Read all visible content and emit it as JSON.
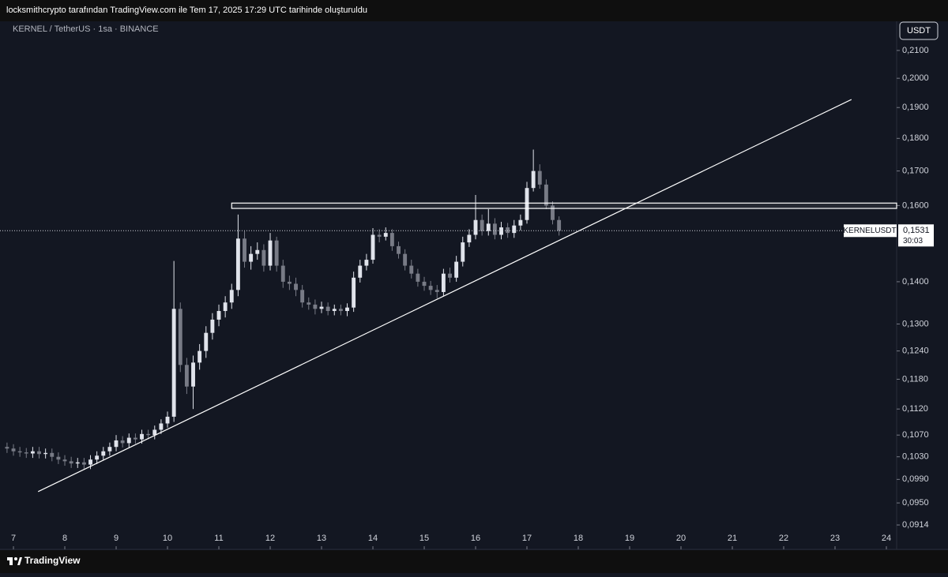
{
  "caption": "locksmithcrypto tarafından TradingView.com ile Tem 17, 2025 17:29 UTC tarihinde oluşturuldu",
  "brand": "TradingView",
  "chart_data": {
    "type": "candlestick",
    "title": "KERNEL / TetherUS · 1sa · BINANCE",
    "currency": "USDT",
    "log_scale": true,
    "up_color": "#e0e3eb",
    "down_color": "#787b86",
    "xlim": [
      6.738,
      24.2
    ],
    "ylim": [
      0.0883,
      0.2207
    ],
    "xticks": [
      7,
      8,
      9,
      10,
      11,
      12,
      13,
      14,
      15,
      16,
      17,
      18,
      19,
      20,
      21,
      22,
      23,
      24
    ],
    "yticks": [
      {
        "value": 0.0914,
        "label": "0,0914"
      },
      {
        "value": 0.095,
        "label": "0,0950"
      },
      {
        "value": 0.099,
        "label": "0,0990"
      },
      {
        "value": 0.103,
        "label": "0,1030"
      },
      {
        "value": 0.107,
        "label": "0,1070"
      },
      {
        "value": 0.112,
        "label": "0,1120"
      },
      {
        "value": 0.118,
        "label": "0,1180"
      },
      {
        "value": 0.124,
        "label": "0,1240"
      },
      {
        "value": 0.13,
        "label": "0,1300"
      },
      {
        "value": 0.14,
        "label": "0,1400"
      },
      {
        "value": 0.16,
        "label": "0,1600"
      },
      {
        "value": 0.17,
        "label": "0,1700"
      },
      {
        "value": 0.18,
        "label": "0,1800"
      },
      {
        "value": 0.19,
        "label": "0,1900"
      },
      {
        "value": 0.2,
        "label": "0,2000"
      },
      {
        "value": 0.21,
        "label": "0,2100"
      }
    ],
    "x": [
      6.875,
      7,
      7.125,
      7.25,
      7.375,
      7.5,
      7.625,
      7.75,
      7.875,
      8,
      8.125,
      8.25,
      8.375,
      8.5,
      8.625,
      8.75,
      8.875,
      9,
      9.125,
      9.25,
      9.375,
      9.5,
      9.625,
      9.75,
      9.875,
      10,
      10.125,
      10.25,
      10.375,
      10.5,
      10.625,
      10.75,
      10.875,
      11,
      11.125,
      11.25,
      11.375,
      11.5,
      11.625,
      11.75,
      11.875,
      12,
      12.125,
      12.25,
      12.375,
      12.5,
      12.625,
      12.75,
      12.875,
      13,
      13.125,
      13.25,
      13.375,
      13.5,
      13.625,
      13.75,
      13.875,
      14,
      14.125,
      14.25,
      14.375,
      14.5,
      14.625,
      14.75,
      14.875,
      15,
      15.125,
      15.25,
      15.375,
      15.5,
      15.625,
      15.75,
      15.875,
      16,
      16.125,
      16.25,
      16.375,
      16.5,
      16.625,
      16.75,
      16.875,
      17,
      17.125,
      17.25,
      17.375,
      17.5,
      17.625
    ],
    "open": [
      0.1048,
      0.1045,
      0.104,
      0.1038,
      0.1036,
      0.104,
      0.1035,
      0.1037,
      0.103,
      0.1025,
      0.1022,
      0.1018,
      0.102,
      0.1016,
      0.1025,
      0.1032,
      0.104,
      0.1048,
      0.106,
      0.1055,
      0.1065,
      0.1062,
      0.1072,
      0.107,
      0.108,
      0.1092,
      0.1105,
      0.1335,
      0.121,
      0.1165,
      0.1215,
      0.124,
      0.128,
      0.131,
      0.133,
      0.135,
      0.138,
      0.151,
      0.145,
      0.147,
      0.148,
      0.144,
      0.1505,
      0.144,
      0.14,
      0.1395,
      0.138,
      0.135,
      0.1345,
      0.1335,
      0.134,
      0.133,
      0.1335,
      0.133,
      0.1338,
      0.141,
      0.144,
      0.1455,
      0.152,
      0.1515,
      0.1525,
      0.149,
      0.147,
      0.144,
      0.142,
      0.14,
      0.139,
      0.138,
      0.1375,
      0.142,
      0.141,
      0.145,
      0.15,
      0.152,
      0.156,
      0.153,
      0.155,
      0.152,
      0.154,
      0.1525,
      0.1545,
      0.156,
      0.165,
      0.17,
      0.166,
      0.16,
      0.156
    ],
    "high": [
      0.1056,
      0.1053,
      0.1048,
      0.1046,
      0.1048,
      0.1048,
      0.1045,
      0.1045,
      0.1038,
      0.1033,
      0.103,
      0.1028,
      0.1028,
      0.1033,
      0.104,
      0.1048,
      0.1056,
      0.107,
      0.1068,
      0.1073,
      0.1073,
      0.108,
      0.108,
      0.1088,
      0.11,
      0.1115,
      0.1452,
      0.135,
      0.1225,
      0.123,
      0.1255,
      0.1295,
      0.1325,
      0.1345,
      0.1365,
      0.1395,
      0.1575,
      0.153,
      0.149,
      0.15,
      0.1495,
      0.1525,
      0.1515,
      0.1455,
      0.1415,
      0.141,
      0.1392,
      0.1362,
      0.1357,
      0.1352,
      0.135,
      0.1345,
      0.1345,
      0.1348,
      0.1425,
      0.1455,
      0.147,
      0.1538,
      0.1535,
      0.154,
      0.1535,
      0.1502,
      0.1482,
      0.1455,
      0.1432,
      0.1412,
      0.1402,
      0.1392,
      0.1432,
      0.1435,
      0.1465,
      0.1515,
      0.1535,
      0.163,
      0.1575,
      0.159,
      0.1565,
      0.1555,
      0.1552,
      0.156,
      0.1575,
      0.1668,
      0.1765,
      0.172,
      0.1675,
      0.1612,
      0.157
    ],
    "low": [
      0.1037,
      0.1032,
      0.103,
      0.1028,
      0.1028,
      0.1027,
      0.1027,
      0.1022,
      0.1017,
      0.1014,
      0.101,
      0.101,
      0.1008,
      0.1008,
      0.1017,
      0.1024,
      0.1032,
      0.104,
      0.1047,
      0.1047,
      0.1054,
      0.1054,
      0.1062,
      0.1062,
      0.1072,
      0.1084,
      0.1095,
      0.1195,
      0.115,
      0.112,
      0.12,
      0.1225,
      0.1265,
      0.1295,
      0.1315,
      0.1335,
      0.1365,
      0.1435,
      0.143,
      0.1455,
      0.1425,
      0.1428,
      0.1425,
      0.1385,
      0.138,
      0.1365,
      0.1338,
      0.1333,
      0.1322,
      0.1325,
      0.132,
      0.132,
      0.132,
      0.1318,
      0.1328,
      0.1398,
      0.1428,
      0.1445,
      0.15,
      0.1505,
      0.1478,
      0.1458,
      0.1428,
      0.1408,
      0.1388,
      0.1378,
      0.1368,
      0.136,
      0.1365,
      0.1398,
      0.14,
      0.1438,
      0.1488,
      0.1508,
      0.1518,
      0.1518,
      0.1508,
      0.1508,
      0.1512,
      0.1512,
      0.1532,
      0.155,
      0.164,
      0.1648,
      0.159,
      0.1548,
      0.1518
    ],
    "close": [
      0.1045,
      0.104,
      0.1038,
      0.1036,
      0.104,
      0.1035,
      0.1037,
      0.103,
      0.1025,
      0.1022,
      0.1018,
      0.102,
      0.1016,
      0.1025,
      0.1032,
      0.104,
      0.1048,
      0.106,
      0.1055,
      0.1065,
      0.1062,
      0.1072,
      0.107,
      0.108,
      0.1092,
      0.1105,
      0.1335,
      0.121,
      0.1165,
      0.1215,
      0.124,
      0.128,
      0.131,
      0.133,
      0.135,
      0.138,
      0.151,
      0.145,
      0.147,
      0.148,
      0.144,
      0.1505,
      0.144,
      0.14,
      0.1395,
      0.138,
      0.135,
      0.1345,
      0.1335,
      0.134,
      0.133,
      0.1335,
      0.133,
      0.1338,
      0.141,
      0.144,
      0.1455,
      0.152,
      0.1515,
      0.1525,
      0.149,
      0.147,
      0.144,
      0.142,
      0.14,
      0.139,
      0.138,
      0.1375,
      0.142,
      0.141,
      0.145,
      0.15,
      0.152,
      0.156,
      0.153,
      0.155,
      0.152,
      0.154,
      0.1525,
      0.1545,
      0.156,
      0.165,
      0.17,
      0.166,
      0.16,
      0.156,
      0.1531
    ],
    "zone": {
      "x_start": 11.25,
      "top": 0.1607,
      "bottom": 0.1592
    },
    "trendline": {
      "x": [
        7.48,
        23.32
      ],
      "values": [
        0.0969,
        0.1927
      ]
    },
    "last_price": {
      "symbol": "KERNELUSDT",
      "value": 0.1531,
      "label": "0,1531",
      "countdown": "30:03"
    }
  }
}
